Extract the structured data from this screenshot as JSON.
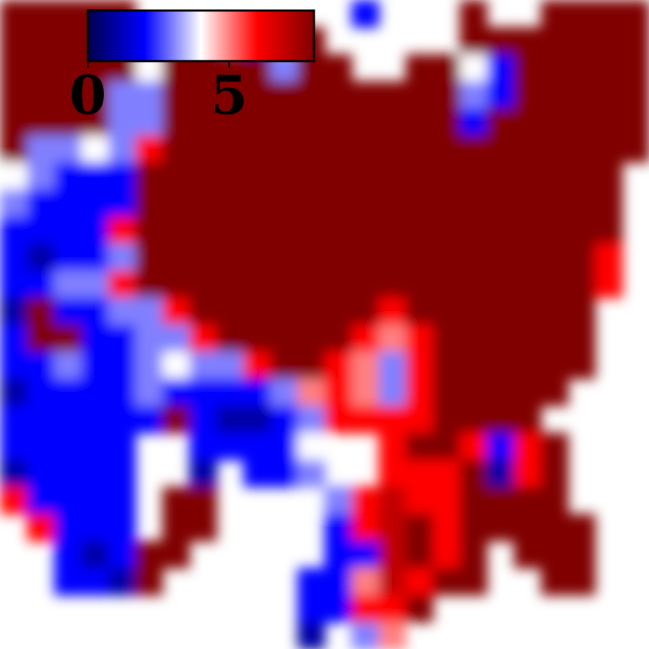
{
  "chart_data": {
    "type": "heatmap",
    "title": "",
    "xlabel": "",
    "ylabel": "",
    "colorbar": {
      "placement": "top-left",
      "orientation": "horizontal",
      "range": [
        0,
        8
      ],
      "ticks": [
        {
          "value": 0,
          "label": "0"
        },
        {
          "value": 5,
          "label": "5"
        }
      ],
      "colormap": "seismic",
      "colormap_stops": [
        {
          "value": 0,
          "color": "#00004d"
        },
        {
          "value": 2,
          "color": "#0000ff"
        },
        {
          "value": 4,
          "color": "#ffffff"
        },
        {
          "value": 6,
          "color": "#ff0000"
        },
        {
          "value": 8,
          "color": "#800000"
        }
      ],
      "value_of_white": 4
    },
    "field": {
      "resolution": [
        24,
        24
      ],
      "empty_code": -1,
      "rows": [
        [
          8,
          8,
          8,
          8,
          8,
          -1,
          -1,
          -1,
          -1,
          -1,
          -1,
          -1,
          -1,
          2,
          -1,
          -1,
          -1,
          8,
          -1,
          -1,
          8,
          8,
          8,
          8
        ],
        [
          8,
          8,
          8,
          8,
          8,
          -1,
          8,
          8,
          -1,
          2,
          -1,
          8,
          -1,
          -1,
          -1,
          -1,
          -1,
          8,
          8,
          8,
          8,
          8,
          8,
          8
        ],
        [
          8,
          8,
          8,
          8,
          8,
          4,
          8,
          8,
          8,
          8,
          3,
          8,
          8,
          -1,
          -1,
          8,
          8,
          4,
          2,
          8,
          8,
          8,
          8,
          8
        ],
        [
          8,
          8,
          8,
          8,
          3,
          3,
          8,
          8,
          8,
          8,
          8,
          8,
          8,
          8,
          8,
          8,
          8,
          3,
          2,
          8,
          8,
          8,
          8,
          8
        ],
        [
          8,
          8,
          8,
          8,
          3,
          3,
          8,
          8,
          8,
          8,
          8,
          8,
          8,
          8,
          8,
          8,
          8,
          2,
          8,
          8,
          8,
          8,
          8,
          8
        ],
        [
          8,
          3,
          3,
          4,
          3,
          6,
          8,
          8,
          8,
          8,
          8,
          8,
          8,
          8,
          8,
          8,
          8,
          8,
          8,
          8,
          8,
          8,
          8,
          8
        ],
        [
          4,
          3,
          2,
          2,
          2,
          8,
          8,
          8,
          8,
          8,
          8,
          8,
          8,
          8,
          8,
          8,
          8,
          8,
          8,
          8,
          8,
          8,
          8,
          -1
        ],
        [
          3,
          2,
          2,
          2,
          2,
          8,
          8,
          8,
          8,
          8,
          8,
          8,
          8,
          8,
          8,
          8,
          8,
          8,
          8,
          8,
          8,
          8,
          8,
          -1
        ],
        [
          2,
          2,
          2,
          2,
          6,
          8,
          8,
          8,
          8,
          8,
          8,
          8,
          8,
          8,
          8,
          8,
          8,
          8,
          8,
          8,
          8,
          8,
          8,
          -1
        ],
        [
          2,
          1,
          2,
          2,
          3,
          8,
          8,
          8,
          8,
          8,
          8,
          8,
          8,
          8,
          8,
          8,
          8,
          8,
          8,
          8,
          8,
          8,
          6,
          -1
        ],
        [
          2,
          2,
          3,
          3,
          6,
          8,
          8,
          8,
          8,
          8,
          8,
          8,
          8,
          8,
          8,
          8,
          8,
          8,
          8,
          8,
          8,
          8,
          6,
          -1
        ],
        [
          1,
          8,
          2,
          2,
          3,
          3,
          6,
          8,
          8,
          8,
          8,
          8,
          8,
          8,
          6,
          8,
          8,
          8,
          8,
          8,
          8,
          8,
          -1,
          -1
        ],
        [
          2,
          8,
          8,
          2,
          2,
          3,
          3,
          6,
          8,
          8,
          8,
          8,
          8,
          6,
          5,
          6,
          8,
          8,
          8,
          8,
          8,
          8,
          -1,
          -1
        ],
        [
          2,
          2,
          3,
          2,
          2,
          3,
          4,
          3,
          3,
          6,
          8,
          8,
          6,
          5,
          3,
          6,
          8,
          8,
          8,
          8,
          8,
          8,
          -1,
          -1
        ],
        [
          1,
          2,
          2,
          2,
          2,
          3,
          2,
          2,
          2,
          2,
          3,
          5,
          6,
          5,
          3,
          6,
          8,
          8,
          8,
          8,
          8,
          -1,
          -1,
          -1
        ],
        [
          2,
          2,
          2,
          2,
          2,
          2,
          8,
          2,
          1,
          1,
          2,
          3,
          6,
          6,
          6,
          6,
          8,
          8,
          8,
          8,
          -1,
          -1,
          -1,
          -1
        ],
        [
          2,
          2,
          2,
          2,
          2,
          -1,
          -1,
          2,
          2,
          2,
          2,
          4,
          -1,
          -1,
          6,
          8,
          8,
          6,
          2,
          6,
          8,
          -1,
          -1,
          -1
        ],
        [
          1,
          2,
          2,
          2,
          2,
          -1,
          -1,
          1,
          -1,
          2,
          2,
          3,
          -1,
          -1,
          6,
          6,
          6,
          8,
          1,
          6,
          8,
          -1,
          -1,
          -1
        ],
        [
          6,
          2,
          2,
          2,
          2,
          -1,
          8,
          8,
          -1,
          -1,
          -1,
          -1,
          3,
          6,
          7,
          6,
          6,
          8,
          8,
          8,
          8,
          -1,
          -1,
          -1
        ],
        [
          -1,
          6,
          2,
          2,
          2,
          -1,
          8,
          8,
          -1,
          -1,
          -1,
          -1,
          2,
          6,
          7,
          8,
          6,
          8,
          8,
          8,
          8,
          8,
          -1,
          -1
        ],
        [
          -1,
          -1,
          2,
          1,
          2,
          8,
          8,
          -1,
          -1,
          -1,
          -1,
          -1,
          2,
          2,
          7,
          8,
          6,
          8,
          -1,
          8,
          8,
          8,
          -1,
          -1
        ],
        [
          -1,
          -1,
          2,
          2,
          1,
          8,
          -1,
          -1,
          -1,
          -1,
          -1,
          2,
          2,
          5,
          7,
          6,
          8,
          8,
          -1,
          -1,
          8,
          8,
          -1,
          -1
        ],
        [
          -1,
          -1,
          -1,
          -1,
          -1,
          -1,
          -1,
          -1,
          -1,
          -1,
          -1,
          2,
          2,
          6,
          6,
          8,
          -1,
          -1,
          -1,
          -1,
          -1,
          -1,
          -1,
          -1
        ],
        [
          -1,
          -1,
          -1,
          -1,
          -1,
          -1,
          -1,
          -1,
          -1,
          -1,
          -1,
          1,
          -1,
          3,
          5,
          -1,
          -1,
          -1,
          -1,
          -1,
          -1,
          -1,
          -1,
          -1
        ]
      ]
    }
  }
}
